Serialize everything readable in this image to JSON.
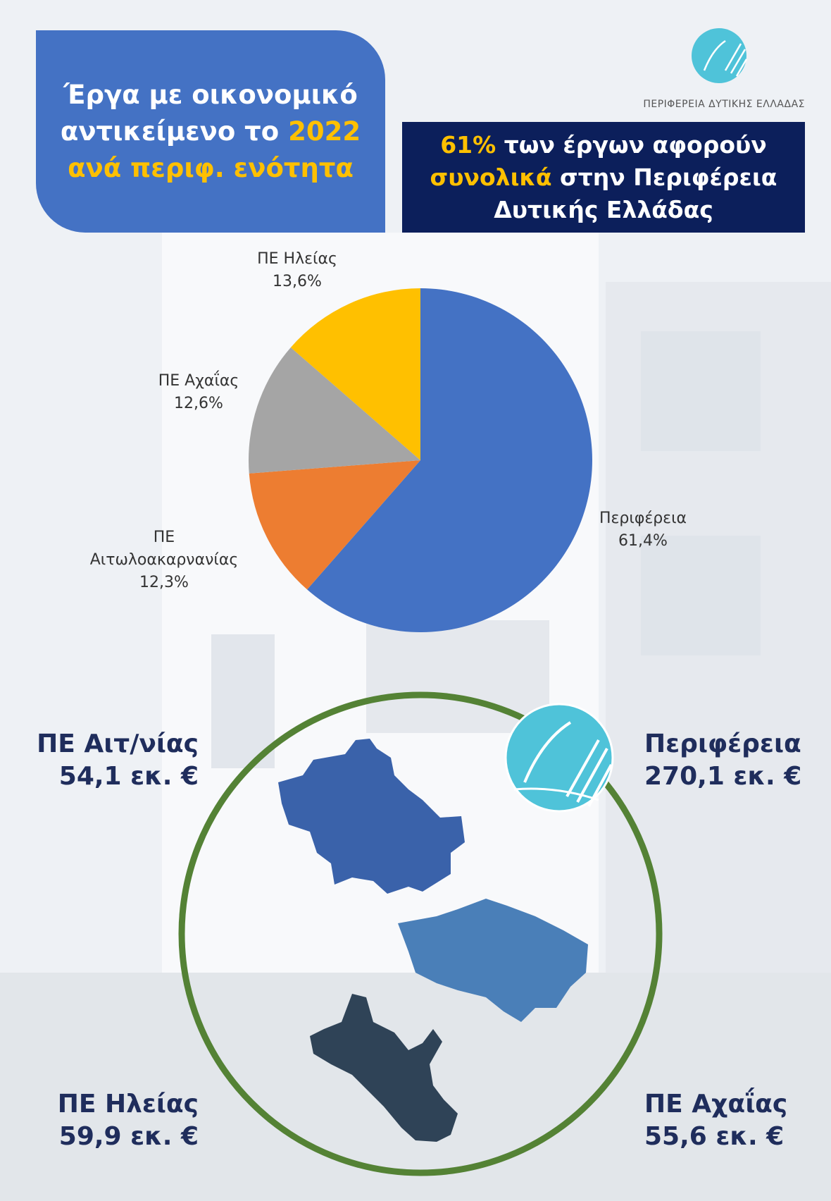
{
  "header": {
    "title": {
      "line1": "Έργα με οικονομικό",
      "line2": "αντικείμενο το",
      "year": "2022",
      "line3": "ανά περιφ. ενότητα"
    },
    "note": {
      "share": "61%",
      "text1": "των έργων αφορούν",
      "highlight": "συνολικά",
      "text2": "στην Περιφέρεια",
      "text3": "Δυτικής Ελλάδας"
    },
    "logo_text": "ΠΕΡΙΦΕΡΕΙΑ ΔΥΤΙΚΗΣ ΕΛΛΑΔΑΣ"
  },
  "chart_data": {
    "type": "pie",
    "categories": [
      "Περιφέρεια",
      "ΠΕ Αιτωλοακαρνανίας",
      "ΠΕ Αχαΐας",
      "ΠΕ Ηλείας"
    ],
    "values": [
      61.4,
      12.3,
      12.6,
      13.6
    ],
    "value_labels": [
      "61,4%",
      "12,3%",
      "12,6%",
      "13,6%"
    ],
    "colors": [
      "#4472c4",
      "#ed7d31",
      "#a5a5a5",
      "#ffc000"
    ]
  },
  "amounts": [
    {
      "name": "ΠΕ Αιτ/νίας",
      "value": "54,1 εκ. €"
    },
    {
      "name": "Περιφέρεια",
      "value": "270,1 εκ. €"
    },
    {
      "name": "ΠΕ Ηλείας",
      "value": "59,9 εκ. €"
    },
    {
      "name": "ΠΕ Αχαΐας",
      "value": "55,6 εκ. €"
    }
  ]
}
